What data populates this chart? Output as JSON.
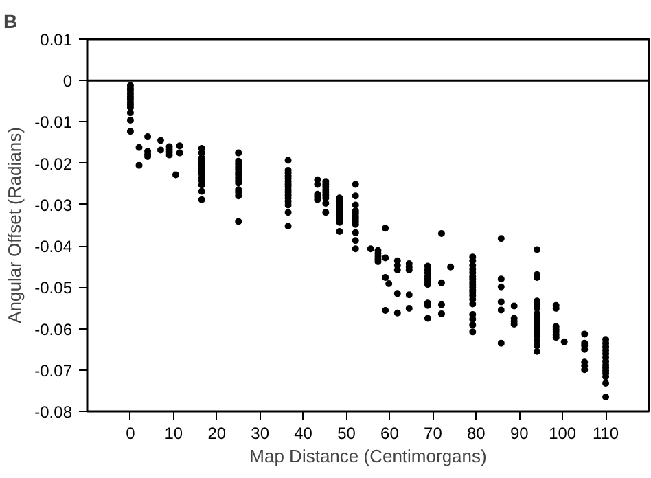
{
  "chart_data": {
    "type": "scatter",
    "xlabel": "Map Distance (Centimorgans)",
    "ylabel": "Angular Offset (Radians)",
    "annotations": [
      "B"
    ],
    "xlim": [
      -10,
      120
    ],
    "xticks": [
      0,
      10,
      20,
      30,
      40,
      50,
      60,
      70,
      80,
      90,
      100,
      110
    ],
    "ylim": [
      -0.08,
      0.01
    ],
    "yticks": [
      0.01,
      0,
      -0.01,
      -0.02,
      -0.03,
      -0.04,
      -0.05,
      -0.06,
      -0.07,
      -0.08
    ],
    "ref_lines": [
      {
        "axis": "y",
        "value": 0,
        "label": null,
        "color": "#000000"
      }
    ],
    "grid": false,
    "marker": "circle",
    "series": [
      {
        "color": "#000000",
        "x": [
          0,
          0,
          0,
          0,
          0,
          0,
          0,
          0,
          0,
          0,
          0,
          0,
          2,
          2,
          4,
          4,
          4,
          4,
          7,
          7,
          9,
          9,
          9,
          9,
          10.5,
          11.4,
          11.4,
          16.5,
          16.5,
          16.5,
          16.5,
          16.5,
          16.5,
          16.5,
          16.5,
          16.5,
          16.5,
          16.5,
          16.5,
          16.5,
          16.5,
          25,
          25,
          25,
          25,
          25,
          25,
          25,
          25,
          25,
          25,
          25,
          25,
          25,
          25,
          36.5,
          36.5,
          36.5,
          36.5,
          36.5,
          36.5,
          36.5,
          36.5,
          36.5,
          36.5,
          36.5,
          36.5,
          36.5,
          36.5,
          36.5,
          36.5,
          43.3,
          43.3,
          43.3,
          43.3,
          43.3,
          45.2,
          45.2,
          45.2,
          45.2,
          45.2,
          45.2,
          45.2,
          45.2,
          45.2,
          48.4,
          48.4,
          48.4,
          48.4,
          48.4,
          48.4,
          48.4,
          48.4,
          48.4,
          48.4,
          48.4,
          52.1,
          52.1,
          52.1,
          52.1,
          52.1,
          52.1,
          52.1,
          52.1,
          52.1,
          52.1,
          52.1,
          52.1,
          55.6,
          57.3,
          57.3,
          57.3,
          57.3,
          57.3,
          59,
          59,
          59,
          59,
          59.8,
          61.8,
          61.8,
          61.8,
          61.8,
          61.8,
          64.5,
          64.5,
          64.5,
          64.5,
          64.5,
          68.8,
          68.8,
          68.8,
          68.8,
          68.8,
          68.8,
          68.8,
          68.8,
          68.8,
          68.8,
          72,
          72,
          72,
          72,
          74.1,
          79.2,
          79.2,
          79.2,
          79.2,
          79.2,
          79.2,
          79.2,
          79.2,
          79.2,
          79.2,
          79.2,
          79.2,
          79.2,
          79.2,
          79.2,
          79.2,
          79.2,
          79.2,
          79.2,
          85.8,
          85.8,
          85.8,
          85.8,
          85.8,
          85.8,
          88.8,
          88.8,
          88.8,
          88.8,
          94.1,
          94.1,
          94.1,
          94.1,
          94.1,
          94.1,
          94.1,
          94.1,
          94.1,
          94.1,
          94.1,
          94.1,
          94.1,
          94.1,
          94.1,
          94.1,
          98.5,
          98.5,
          98.5,
          98.5,
          98.5,
          98.5,
          98.5,
          100.4,
          105.1,
          105.1,
          105.1,
          105.1,
          105.1,
          105.1,
          105.1,
          110,
          110,
          110,
          110,
          110,
          110,
          110,
          110,
          110,
          110,
          110,
          110,
          110,
          110
        ],
        "values": [
          -0.0012,
          -0.0019,
          -0.0025,
          -0.0032,
          -0.0039,
          -0.0045,
          -0.0052,
          -0.0058,
          -0.0065,
          -0.0078,
          -0.0096,
          -0.0123,
          -0.0162,
          -0.0205,
          -0.0136,
          -0.0171,
          -0.0178,
          -0.0184,
          -0.0145,
          -0.0168,
          -0.016,
          -0.0167,
          -0.0173,
          -0.018,
          -0.0228,
          -0.0158,
          -0.0175,
          -0.0164,
          -0.0175,
          -0.0187,
          -0.0193,
          -0.02,
          -0.0206,
          -0.0213,
          -0.022,
          -0.0226,
          -0.0235,
          -0.0242,
          -0.0253,
          -0.0268,
          -0.0288,
          -0.0175,
          -0.0195,
          -0.0202,
          -0.0209,
          -0.0215,
          -0.0222,
          -0.0228,
          -0.0235,
          -0.0242,
          -0.0248,
          -0.0264,
          -0.027,
          -0.0279,
          -0.0341,
          -0.0193,
          -0.0217,
          -0.0224,
          -0.0231,
          -0.0237,
          -0.0244,
          -0.0251,
          -0.0257,
          -0.0264,
          -0.027,
          -0.0277,
          -0.0284,
          -0.0292,
          -0.0301,
          -0.0319,
          -0.0352,
          -0.024,
          -0.0251,
          -0.0275,
          -0.0281,
          -0.0288,
          -0.0244,
          -0.0251,
          -0.0257,
          -0.0264,
          -0.027,
          -0.0277,
          -0.0284,
          -0.0297,
          -0.0319,
          -0.0284,
          -0.029,
          -0.0297,
          -0.0304,
          -0.031,
          -0.0317,
          -0.0323,
          -0.033,
          -0.0337,
          -0.0343,
          -0.0365,
          -0.0251,
          -0.0279,
          -0.0301,
          -0.0315,
          -0.0321,
          -0.0328,
          -0.0334,
          -0.0341,
          -0.0348,
          -0.0368,
          -0.0387,
          -0.0407,
          -0.0407,
          -0.0411,
          -0.0418,
          -0.0425,
          -0.0432,
          -0.0438,
          -0.0357,
          -0.0429,
          -0.0476,
          -0.0556,
          -0.0491,
          -0.0436,
          -0.0447,
          -0.0458,
          -0.0515,
          -0.0562,
          -0.0443,
          -0.0451,
          -0.0458,
          -0.0518,
          -0.0551,
          -0.0449,
          -0.0457,
          -0.0465,
          -0.0474,
          -0.048,
          -0.0487,
          -0.0493,
          -0.0538,
          -0.0544,
          -0.0575,
          -0.037,
          -0.0489,
          -0.0542,
          -0.0564,
          -0.0451,
          -0.0427,
          -0.0436,
          -0.0447,
          -0.0456,
          -0.0465,
          -0.0474,
          -0.048,
          -0.0487,
          -0.0493,
          -0.05,
          -0.0507,
          -0.0513,
          -0.052,
          -0.0529,
          -0.054,
          -0.0566,
          -0.0577,
          -0.0591,
          -0.0608,
          -0.0382,
          -0.048,
          -0.0499,
          -0.0535,
          -0.0555,
          -0.0635,
          -0.0545,
          -0.0575,
          -0.0582,
          -0.0589,
          -0.0409,
          -0.0469,
          -0.0476,
          -0.0533,
          -0.0542,
          -0.0551,
          -0.0564,
          -0.0573,
          -0.0582,
          -0.0591,
          -0.0599,
          -0.0608,
          -0.0617,
          -0.0628,
          -0.0641,
          -0.0655,
          -0.0544,
          -0.0551,
          -0.0595,
          -0.0602,
          -0.0608,
          -0.0615,
          -0.0621,
          -0.0632,
          -0.0613,
          -0.0635,
          -0.0641,
          -0.065,
          -0.0681,
          -0.069,
          -0.0699,
          -0.0626,
          -0.0635,
          -0.0644,
          -0.0652,
          -0.0661,
          -0.067,
          -0.0679,
          -0.0688,
          -0.0694,
          -0.0701,
          -0.0708,
          -0.0716,
          -0.0732,
          -0.0765
        ]
      }
    ]
  }
}
